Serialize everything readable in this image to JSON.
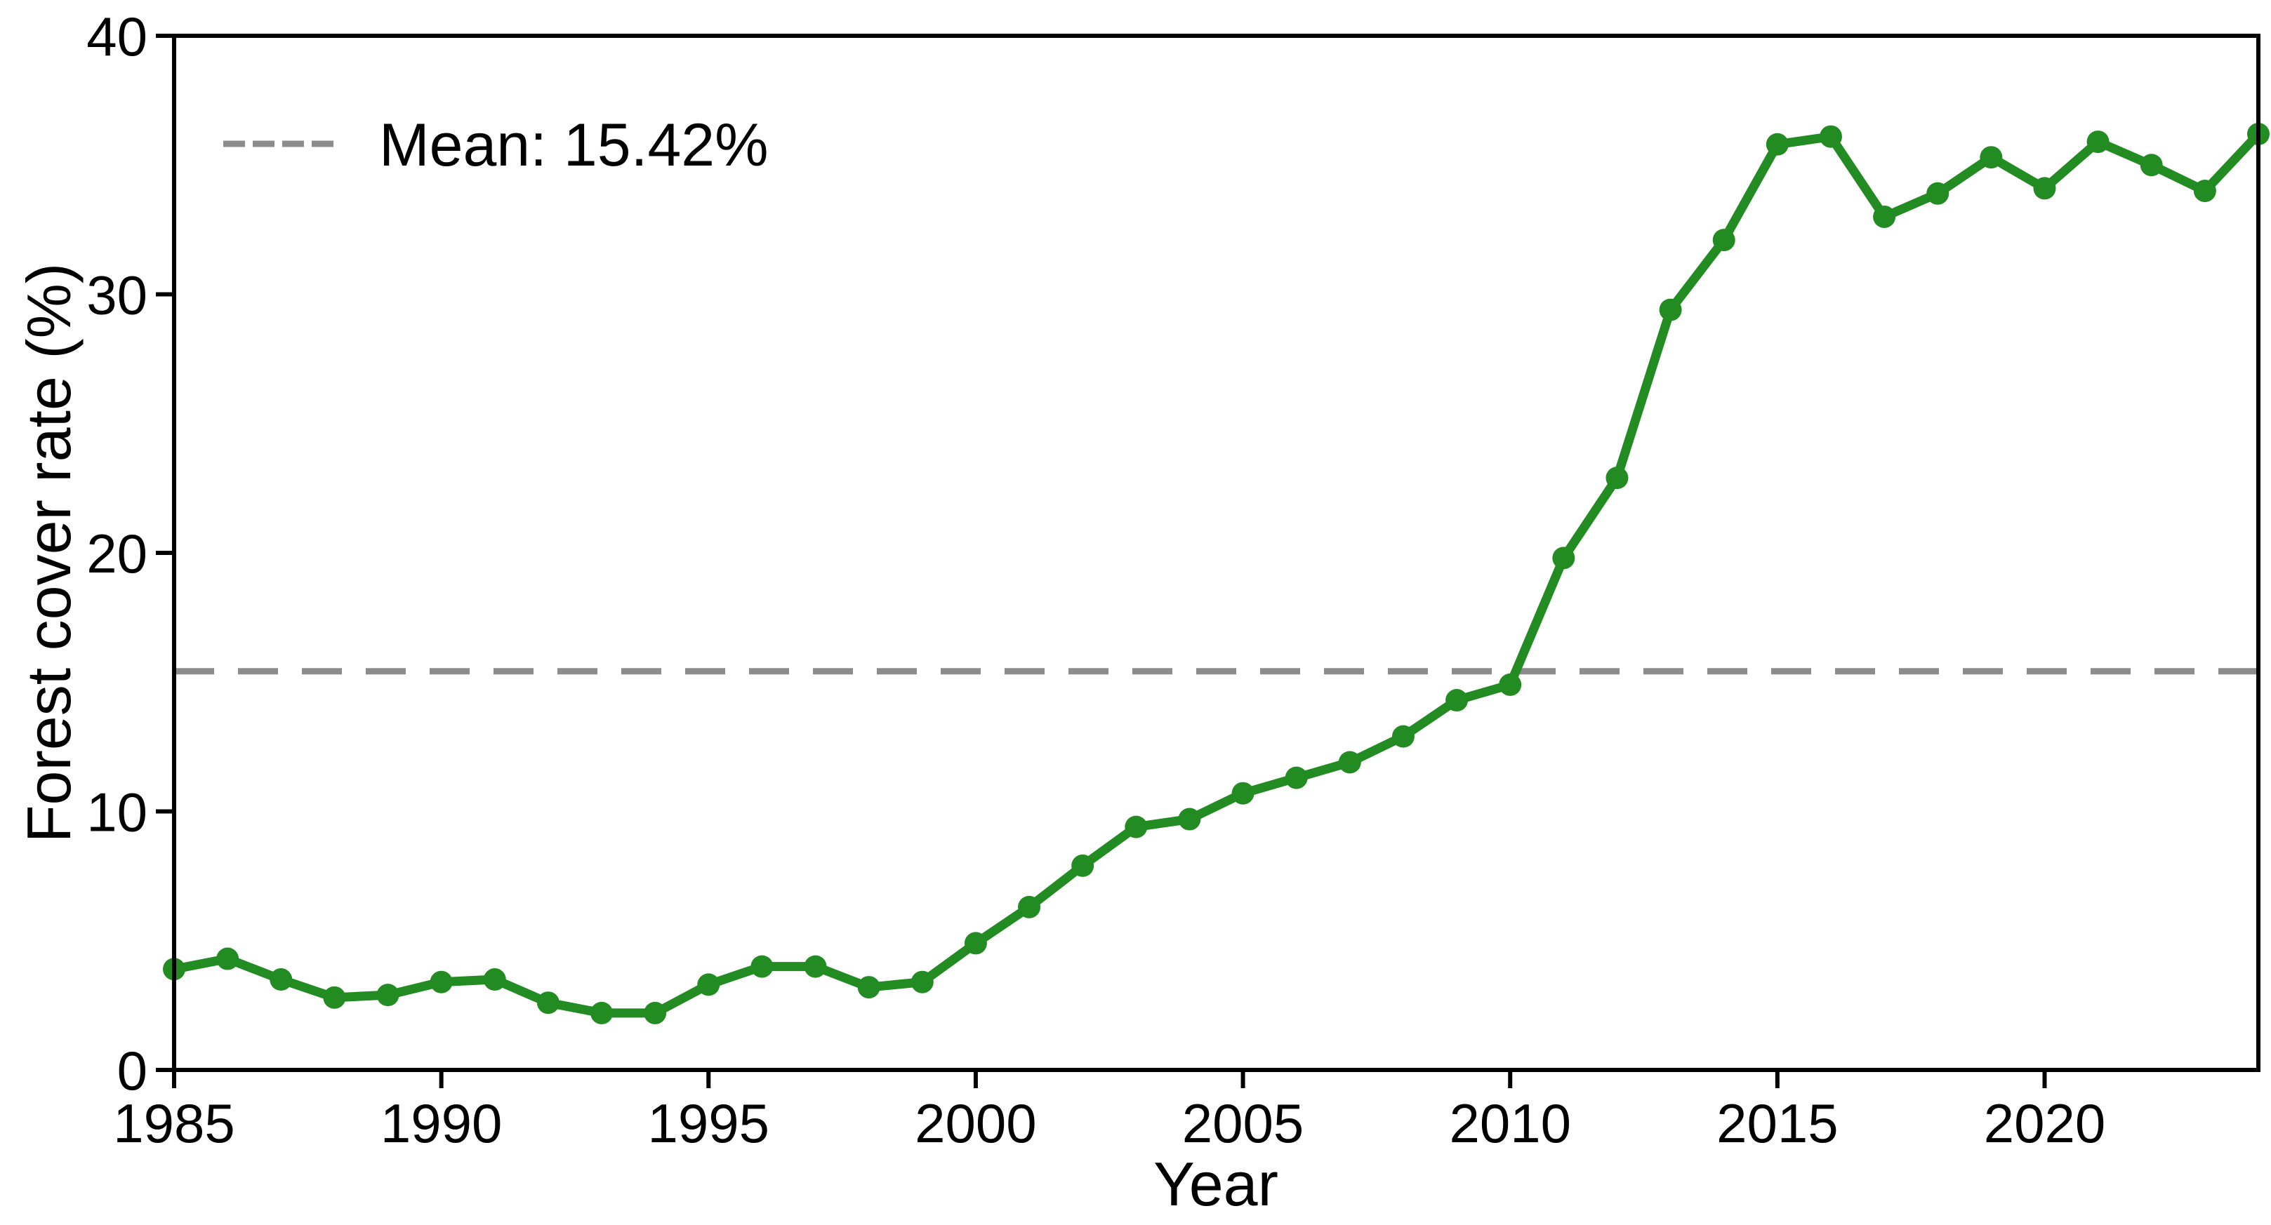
{
  "chart_data": {
    "type": "line",
    "title": "",
    "xlabel": "Year",
    "ylabel": "Forest cover rate (%)",
    "legend_label": "Mean: 15.42%",
    "x": [
      1985,
      1986,
      1987,
      1988,
      1989,
      1990,
      1991,
      1992,
      1993,
      1994,
      1995,
      1996,
      1997,
      1998,
      1999,
      2000,
      2001,
      2002,
      2003,
      2004,
      2005,
      2006,
      2007,
      2008,
      2009,
      2010,
      2011,
      2012,
      2013,
      2014,
      2015,
      2016,
      2017,
      2018,
      2019,
      2020,
      2021,
      2022,
      2023,
      2024
    ],
    "series": [
      {
        "name": "Forest cover rate",
        "values": [
          3.9,
          4.3,
          3.5,
          2.8,
          2.9,
          3.4,
          3.5,
          2.6,
          2.2,
          2.2,
          3.3,
          4.0,
          4.0,
          3.2,
          3.4,
          4.9,
          6.3,
          7.9,
          9.4,
          9.7,
          10.7,
          11.3,
          11.9,
          12.9,
          14.3,
          14.9,
          19.8,
          22.9,
          29.4,
          32.1,
          35.8,
          36.1,
          33.0,
          33.9,
          35.3,
          34.1,
          35.9,
          35.0,
          34.0,
          36.2
        ]
      }
    ],
    "mean_value": 15.42,
    "xlim": [
      1985,
      2024
    ],
    "ylim": [
      0,
      40
    ],
    "xticks": [
      1985,
      1990,
      1995,
      2000,
      2005,
      2010,
      2015,
      2020
    ],
    "yticks": [
      0,
      10,
      20,
      30,
      40
    ],
    "grid": false,
    "legend_position": "upper-left",
    "colors": {
      "series_line": "#228B22",
      "marker": "#228B22",
      "mean_line": "#8c8c8c",
      "axis": "#000000",
      "background": "#ffffff"
    }
  }
}
